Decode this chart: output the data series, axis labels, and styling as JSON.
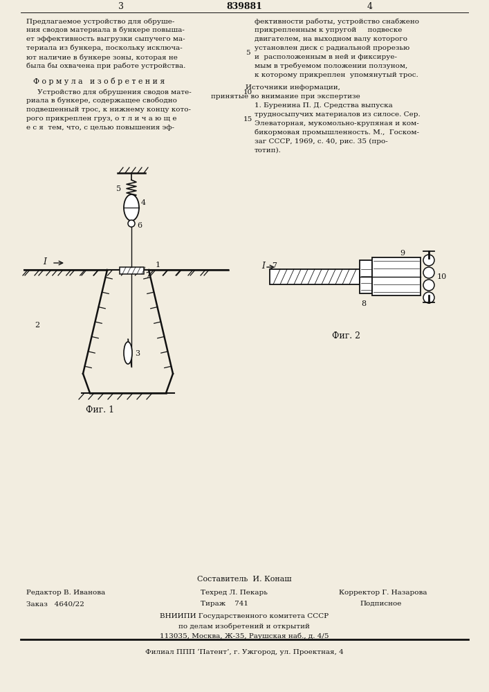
{
  "patent_number": "839881",
  "page_left": "3",
  "page_right": "4",
  "bg_color": "#f2ede0",
  "text_color": "#111111",
  "col_left_top_text": [
    "Предлагаемое устройство для обруше-",
    "ния сводов материала в бункере повыша-",
    "ет эффективность выгрузки сыпучего ма-",
    "териала из бункера, поскольку исключа-",
    "ют наличие в бункере зоны, которая не",
    "была бы охвачена при работе устройства."
  ],
  "formula_title": "Ф о р м у л а   и з о б р е т е н и я",
  "formula_text": [
    "     Устройство для обрушения сводов мате-",
    "риала в бункере, содержащее свободно",
    "подвешенный трос, к нижнему концу кото-",
    "рого прикреплен груз, о т л и ч а ю щ е",
    "е с я  тем, что, с целью повышения эф-"
  ],
  "col_right_top_text_lines": [
    "фективности работы, устройство снабжено",
    "прикрепленным к упругой     подвеске",
    "двигателем, на выходном валу которого",
    "установлен диск с радиальной прорезью",
    "и  расположенным в ней и фиксируе-",
    "мым в требуемом положении ползуном,",
    "к которому прикреплен  упомянутый трос."
  ],
  "sources_title": "Источники информации,",
  "sources_subtitle": "принятые во внимание при экспертизе",
  "sources_text": [
    "1. Буренина П. Д. Средства выпуска",
    "трудносыпучих материалов из силосе. Сер.",
    "Элеваторная, мукомольно-крупяная и ком-",
    "бикормовая промышленность. М.,  Госком-",
    "заг СССР, 1969, с. 40, рис. 35 (про-",
    "тотип)."
  ],
  "fig1_label": "Фиг. 1",
  "fig2_label": "Фиг. 2",
  "composer_line": "Составитель  И. Конаш",
  "editor_line": "Редактор В. Иванова",
  "techred_line": "Техред Л. Пекарь",
  "corrector_line": "Корректор Г. Назарова",
  "order_line": "Заказ   4640/22",
  "tirazh_line": "Тираж    741",
  "podpisnoe_line": "Подписное",
  "vnipi_line": "ВНИИПИ Государственного комитета СССР",
  "vnipi_line2": "по делам изобретений и открытий",
  "address_line": "113035, Москва, Ж-35, Раушская наб., д. 4/5",
  "filial_line": "Филиал ППП ‘Патент’, г. Ужгород, ул. Проектная, 4"
}
